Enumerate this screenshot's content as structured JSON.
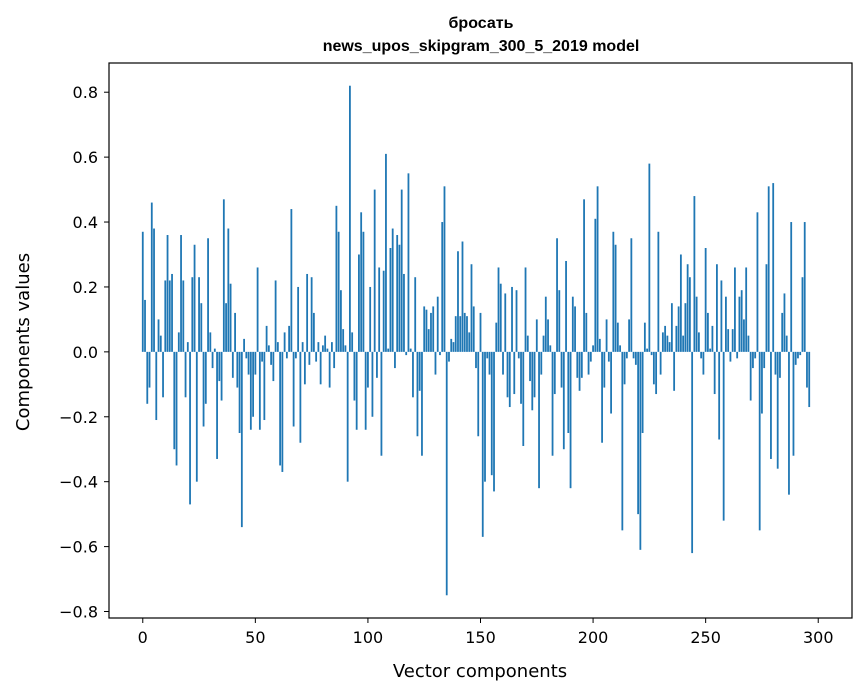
{
  "chart_data": {
    "type": "bar",
    "title": "бросать",
    "subtitle": "news_upos_skipgram_300_5_2019 model",
    "xlabel": "Vector components",
    "ylabel": "Components values",
    "xlim": [
      -15,
      315
    ],
    "ylim": [
      -0.82,
      0.89
    ],
    "xticks": [
      0,
      50,
      100,
      150,
      200,
      250,
      300
    ],
    "yticks": [
      -0.8,
      -0.6,
      -0.4,
      -0.2,
      0.0,
      0.2,
      0.4,
      0.6,
      0.8
    ],
    "xtick_labels": [
      "0",
      "50",
      "100",
      "150",
      "200",
      "250",
      "300"
    ],
    "ytick_labels": [
      "−0.8",
      "−0.6",
      "−0.4",
      "−0.2",
      "0.0",
      "0.2",
      "0.4",
      "0.6",
      "0.8"
    ],
    "bar_color": "#1f77b4",
    "grid": false,
    "values": [
      0.37,
      0.16,
      -0.16,
      -0.11,
      0.46,
      0.38,
      -0.21,
      0.1,
      0.05,
      -0.14,
      0.22,
      0.36,
      0.22,
      0.24,
      -0.3,
      -0.35,
      0.06,
      0.36,
      0.22,
      -0.14,
      0.03,
      -0.47,
      0.23,
      0.33,
      -0.4,
      0.23,
      0.15,
      -0.23,
      -0.16,
      0.35,
      0.06,
      -0.05,
      0.01,
      -0.33,
      -0.09,
      -0.15,
      0.47,
      0.15,
      0.38,
      0.21,
      -0.08,
      0.12,
      -0.11,
      -0.25,
      -0.54,
      0.04,
      -0.02,
      -0.07,
      -0.24,
      -0.2,
      -0.07,
      0.26,
      -0.24,
      -0.03,
      -0.21,
      0.08,
      0.02,
      -0.04,
      -0.09,
      0.22,
      0.03,
      -0.35,
      -0.37,
      0.06,
      -0.02,
      0.08,
      0.44,
      -0.23,
      -0.02,
      0.2,
      -0.28,
      0.03,
      -0.1,
      0.24,
      -0.04,
      0.23,
      0.12,
      -0.03,
      0.03,
      -0.1,
      0.02,
      0.05,
      0.01,
      -0.11,
      0.03,
      -0.05,
      0.45,
      0.37,
      0.19,
      0.07,
      0.02,
      -0.4,
      0.82,
      0.06,
      -0.15,
      -0.24,
      0.3,
      0.43,
      0.37,
      -0.24,
      -0.11,
      0.2,
      -0.2,
      0.5,
      -0.08,
      0.26,
      -0.32,
      0.25,
      0.61,
      0.01,
      0.32,
      0.38,
      -0.05,
      0.36,
      0.33,
      0.5,
      0.24,
      -0.01,
      0.55,
      0.01,
      -0.14,
      0.23,
      -0.26,
      -0.12,
      -0.32,
      0.14,
      0.13,
      0.07,
      0.12,
      0.14,
      -0.07,
      0.17,
      -0.01,
      0.4,
      0.51,
      -0.75,
      -0.03,
      0.04,
      0.03,
      0.11,
      0.31,
      0.11,
      0.34,
      0.12,
      0.11,
      0.06,
      0.27,
      0.14,
      -0.05,
      -0.26,
      0.12,
      -0.57,
      -0.4,
      -0.02,
      -0.07,
      -0.38,
      -0.43,
      0.09,
      0.26,
      0.21,
      -0.07,
      0.18,
      -0.14,
      -0.17,
      0.2,
      -0.13,
      0.19,
      -0.02,
      -0.16,
      -0.29,
      0.26,
      0.05,
      -0.09,
      -0.18,
      -0.14,
      0.1,
      -0.42,
      -0.07,
      0.05,
      0.17,
      0.1,
      0.02,
      -0.32,
      -0.13,
      0.35,
      0.19,
      -0.11,
      -0.3,
      0.28,
      -0.25,
      -0.42,
      0.17,
      0.14,
      -0.08,
      -0.12,
      -0.08,
      0.47,
      0.12,
      -0.07,
      -0.03,
      0.02,
      0.41,
      0.51,
      0.04,
      -0.28,
      -0.11,
      0.1,
      -0.03,
      -0.19,
      0.37,
      0.33,
      0.09,
      0.02,
      -0.55,
      -0.1,
      -0.02,
      0.1,
      0.35,
      -0.02,
      -0.04,
      -0.5,
      -0.61,
      -0.25,
      0.09,
      0.01,
      0.58,
      -0.01,
      -0.1,
      -0.13,
      0.37,
      -0.07,
      0.06,
      0.08,
      0.05,
      0.03,
      0.15,
      -0.12,
      0.08,
      0.14,
      0.3,
      0.05,
      0.15,
      0.27,
      0.23,
      -0.62,
      0.48,
      0.17,
      0.06,
      -0.02,
      -0.07,
      0.32,
      0.12,
      0.01,
      0.08,
      -0.13,
      0.27,
      -0.27,
      0.22,
      -0.52,
      0.17,
      0.07,
      -0.03,
      0.07,
      0.26,
      -0.02,
      0.17,
      0.19,
      0.1,
      0.26,
      0.05,
      -0.15,
      -0.05,
      -0.02,
      0.43,
      -0.55,
      -0.19,
      -0.05,
      0.27,
      0.51,
      -0.33,
      0.52,
      -0.07,
      -0.36,
      -0.08,
      0.12,
      0.18,
      0.05,
      -0.44,
      0.4,
      -0.32,
      -0.04,
      -0.02,
      -0.01,
      0.23,
      0.4,
      -0.11,
      -0.17
    ]
  }
}
